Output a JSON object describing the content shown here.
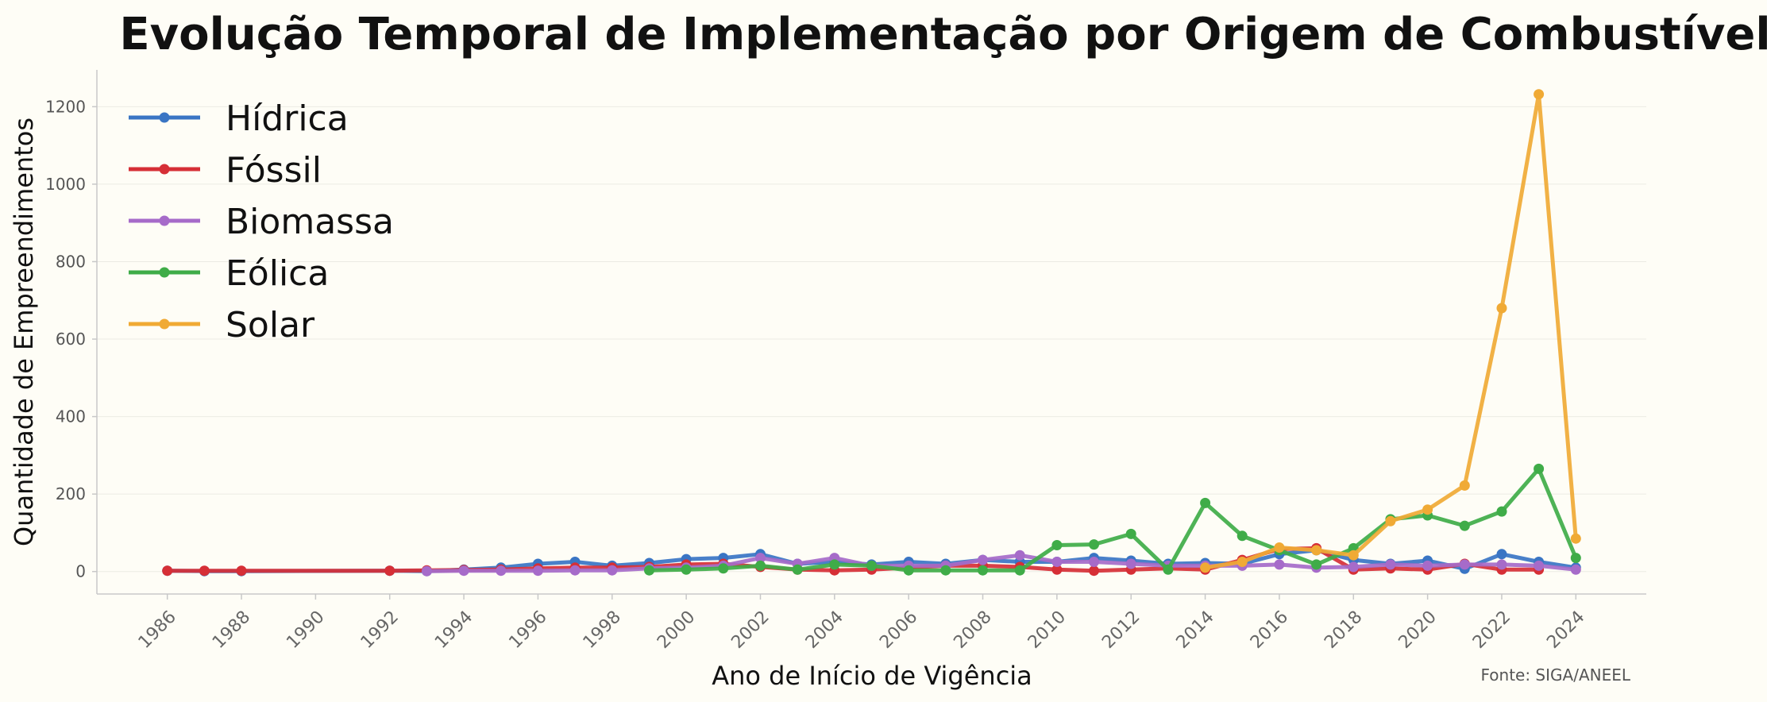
{
  "chart_data": {
    "type": "line",
    "title": "Evolução Temporal de Implementação por Origem de Combustível",
    "xlabel": "Ano de Início de Vigência",
    "ylabel": "Quantidade de Empreendimentos",
    "source": "Fonte: SIGA/ANEEL",
    "xlim": [
      1984.1,
      2025.9
    ],
    "ylim": [
      -58,
      1295
    ],
    "xticks": [
      1986,
      1988,
      1990,
      1992,
      1994,
      1996,
      1998,
      2000,
      2002,
      2004,
      2006,
      2008,
      2010,
      2012,
      2014,
      2016,
      2018,
      2020,
      2022,
      2024
    ],
    "yticks": [
      0,
      200,
      400,
      600,
      800,
      1000,
      1200
    ],
    "grid": "horizontal",
    "legend_position": "top-left",
    "series": [
      {
        "name": "Hídrica",
        "color": "#3a75c4",
        "points": [
          [
            1986,
            2
          ],
          [
            1987,
            1
          ],
          [
            1988,
            1
          ],
          [
            1992,
            2
          ],
          [
            1993,
            1
          ],
          [
            1994,
            5
          ],
          [
            1995,
            10
          ],
          [
            1996,
            20
          ],
          [
            1997,
            25
          ],
          [
            1998,
            15
          ],
          [
            1999,
            22
          ],
          [
            2000,
            32
          ],
          [
            2001,
            35
          ],
          [
            2002,
            45
          ],
          [
            2003,
            20
          ],
          [
            2004,
            25
          ],
          [
            2005,
            18
          ],
          [
            2006,
            25
          ],
          [
            2007,
            20
          ],
          [
            2008,
            30
          ],
          [
            2009,
            25
          ],
          [
            2010,
            25
          ],
          [
            2011,
            35
          ],
          [
            2012,
            28
          ],
          [
            2013,
            20
          ],
          [
            2014,
            22
          ],
          [
            2015,
            20
          ],
          [
            2016,
            45
          ],
          [
            2017,
            55
          ],
          [
            2018,
            30
          ],
          [
            2019,
            20
          ],
          [
            2020,
            28
          ],
          [
            2021,
            7
          ],
          [
            2022,
            45
          ],
          [
            2023,
            25
          ],
          [
            2024,
            10
          ]
        ]
      },
      {
        "name": "Fóssil",
        "color": "#d62f36",
        "points": [
          [
            1986,
            2
          ],
          [
            1987,
            2
          ],
          [
            1988,
            2
          ],
          [
            1992,
            2
          ],
          [
            1993,
            3
          ],
          [
            1994,
            4
          ],
          [
            1995,
            5
          ],
          [
            1996,
            8
          ],
          [
            1997,
            10
          ],
          [
            1998,
            10
          ],
          [
            1999,
            12
          ],
          [
            2000,
            18
          ],
          [
            2001,
            20
          ],
          [
            2002,
            12
          ],
          [
            2003,
            5
          ],
          [
            2004,
            3
          ],
          [
            2005,
            5
          ],
          [
            2006,
            10
          ],
          [
            2007,
            15
          ],
          [
            2008,
            15
          ],
          [
            2009,
            12
          ],
          [
            2010,
            5
          ],
          [
            2011,
            2
          ],
          [
            2012,
            5
          ],
          [
            2013,
            8
          ],
          [
            2014,
            5
          ],
          [
            2015,
            30
          ],
          [
            2016,
            58
          ],
          [
            2017,
            60
          ],
          [
            2018,
            5
          ],
          [
            2019,
            8
          ],
          [
            2020,
            5
          ],
          [
            2021,
            20
          ],
          [
            2022,
            5
          ],
          [
            2023,
            5
          ]
        ]
      },
      {
        "name": "Biomassa",
        "color": "#a66bc9",
        "points": [
          [
            1993,
            1
          ],
          [
            1994,
            2
          ],
          [
            1995,
            2
          ],
          [
            1996,
            2
          ],
          [
            1997,
            3
          ],
          [
            1998,
            3
          ],
          [
            1999,
            8
          ],
          [
            2000,
            10
          ],
          [
            2001,
            15
          ],
          [
            2002,
            35
          ],
          [
            2003,
            20
          ],
          [
            2004,
            35
          ],
          [
            2005,
            15
          ],
          [
            2006,
            15
          ],
          [
            2007,
            15
          ],
          [
            2008,
            30
          ],
          [
            2009,
            42
          ],
          [
            2010,
            25
          ],
          [
            2011,
            25
          ],
          [
            2012,
            20
          ],
          [
            2013,
            15
          ],
          [
            2014,
            15
          ],
          [
            2015,
            15
          ],
          [
            2016,
            18
          ],
          [
            2017,
            10
          ],
          [
            2018,
            12
          ],
          [
            2019,
            18
          ],
          [
            2020,
            15
          ],
          [
            2021,
            18
          ],
          [
            2022,
            18
          ],
          [
            2023,
            15
          ],
          [
            2024,
            5
          ]
        ]
      },
      {
        "name": "Eólica",
        "color": "#3fac48",
        "points": [
          [
            1999,
            3
          ],
          [
            2000,
            5
          ],
          [
            2001,
            8
          ],
          [
            2002,
            15
          ],
          [
            2003,
            5
          ],
          [
            2004,
            18
          ],
          [
            2005,
            15
          ],
          [
            2006,
            3
          ],
          [
            2007,
            3
          ],
          [
            2008,
            3
          ],
          [
            2009,
            3
          ],
          [
            2010,
            68
          ],
          [
            2011,
            70
          ],
          [
            2012,
            97
          ],
          [
            2013,
            5
          ],
          [
            2014,
            177
          ],
          [
            2015,
            92
          ],
          [
            2016,
            55
          ],
          [
            2017,
            18
          ],
          [
            2018,
            60
          ],
          [
            2019,
            135
          ],
          [
            2020,
            145
          ],
          [
            2021,
            118
          ],
          [
            2022,
            155
          ],
          [
            2023,
            265
          ],
          [
            2024,
            35
          ]
        ]
      },
      {
        "name": "Solar",
        "color": "#f0aa35",
        "points": [
          [
            2014,
            10
          ],
          [
            2015,
            25
          ],
          [
            2016,
            62
          ],
          [
            2017,
            55
          ],
          [
            2018,
            42
          ],
          [
            2019,
            130
          ],
          [
            2020,
            160
          ],
          [
            2021,
            222
          ],
          [
            2022,
            680
          ],
          [
            2023,
            1232
          ],
          [
            2024,
            85
          ]
        ]
      }
    ]
  }
}
